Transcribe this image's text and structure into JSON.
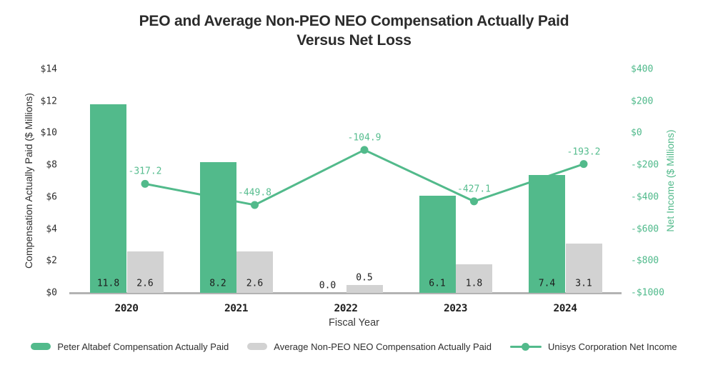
{
  "title": {
    "line1": "PEO and Average Non-PEO NEO Compensation Actually Paid",
    "line2": "Versus Net Loss"
  },
  "chart_data": {
    "type": "combo-bar-line",
    "categories": [
      "2020",
      "2021",
      "2022",
      "2023",
      "2024"
    ],
    "xlabel": "Fiscal Year",
    "series": [
      {
        "name": "Peter Altabef Compensation Actually Paid",
        "type": "bar",
        "axis": "left",
        "color": "#52ba8b",
        "values": [
          11.8,
          8.2,
          0.0,
          6.1,
          7.4
        ],
        "labels": [
          "11.8",
          "8.2",
          "0.0",
          "6.1",
          "7.4"
        ]
      },
      {
        "name": "Average Non-PEO NEO Compensation Actually Paid",
        "type": "bar",
        "axis": "left",
        "color": "#d2d2d2",
        "values": [
          2.6,
          2.6,
          0.5,
          1.8,
          3.1
        ],
        "labels": [
          "2.6",
          "2.6",
          "0.5",
          "1.8",
          "3.1"
        ]
      },
      {
        "name": "Unisys Corporation Net Income",
        "type": "line",
        "axis": "right",
        "color": "#52ba8b",
        "values": [
          -317.2,
          -449.8,
          -104.9,
          -427.1,
          -193.2
        ],
        "labels": [
          "-317.2",
          "-449.8",
          "-104.9",
          "-427.1",
          "-193.2"
        ]
      }
    ],
    "left_axis": {
      "label": "Compensation Actually Paid ($ Millions)",
      "tick_labels": [
        "$14",
        "$12",
        "$10",
        "$8",
        "$6",
        "$4",
        "$2",
        "$0"
      ],
      "range": [
        0,
        14
      ],
      "tick_step": 2
    },
    "right_axis": {
      "label": "Net Income ($ Millions)",
      "tick_labels": [
        "$400",
        "$200",
        "$0",
        "-$200",
        "-$400",
        "-$600",
        "-$800",
        "-$1000"
      ],
      "range": [
        -1000,
        400
      ],
      "tick_step": 200
    },
    "grid": false,
    "legend_position": "bottom"
  },
  "legend": {
    "items": [
      {
        "label": "Peter Altabef Compensation Actually Paid",
        "marker": "bar-swatch",
        "color": "#52ba8b"
      },
      {
        "label": "Average Non-PEO NEO Compensation Actually Paid",
        "marker": "bar-swatch",
        "color": "#d2d2d2"
      },
      {
        "label": "Unisys Corporation Net Income",
        "marker": "line-dot",
        "color": "#52ba8b"
      }
    ]
  },
  "colors": {
    "bar_green": "#52ba8b",
    "bar_gray": "#d2d2d2",
    "line_green": "#52ba8b",
    "line_label_green": "#57bd8f",
    "axis_line_gray": "#b3b3b3",
    "title_text": "#2b2b2b",
    "left_tick_text": "#2e2e2e",
    "right_tick_text": "#4eb98a",
    "bar_label_text": "#1c1c1c"
  }
}
